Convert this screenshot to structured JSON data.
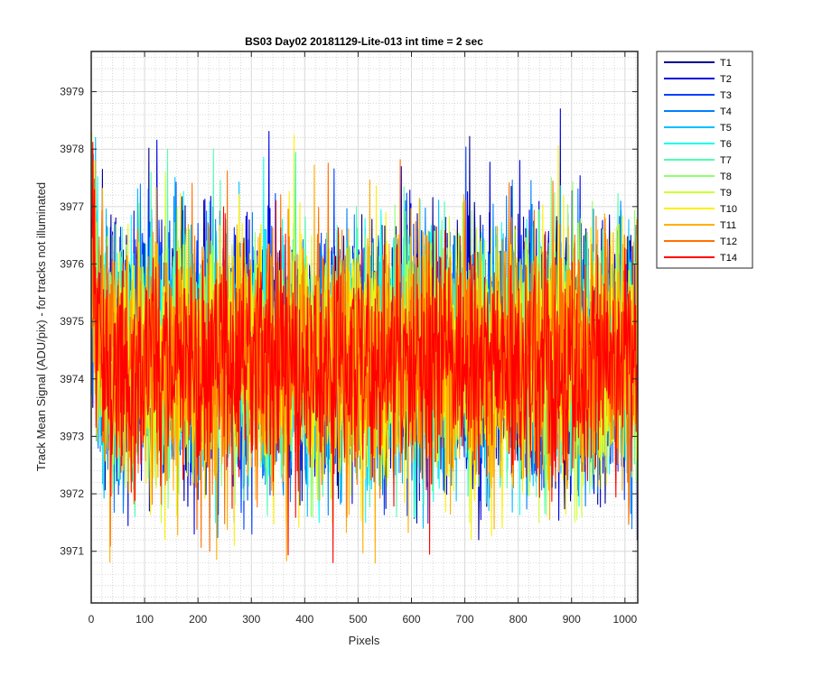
{
  "chart_data": {
    "type": "line",
    "title": "BS03 Day02 20181129-Lite-013 int time = 2 sec",
    "xlabel": "Pixels",
    "ylabel": "Track Mean Signal (ADU/pix) - for tracks not illuminated",
    "xlim": [
      0,
      1024
    ],
    "ylim": [
      3970.1,
      3979.7
    ],
    "xticks": [
      0,
      100,
      200,
      300,
      400,
      500,
      600,
      700,
      800,
      900,
      1000
    ],
    "yticks": [
      3971,
      3972,
      3973,
      3974,
      3975,
      3976,
      3977,
      3978,
      3979
    ],
    "grid": "major and minor",
    "legend_position": "outside-right-top",
    "x_points": 1024,
    "series": [
      {
        "name": "T1",
        "color": "#00008F",
        "mean": 3974.55,
        "spread": 1.15,
        "min": 3971.2,
        "max": 3979.6
      },
      {
        "name": "T2",
        "color": "#0000DF",
        "mean": 3974.5,
        "spread": 1.15,
        "min": 3971.3,
        "max": 3979.4
      },
      {
        "name": "T3",
        "color": "#0040FF",
        "mean": 3974.45,
        "spread": 1.1,
        "min": 3971.3,
        "max": 3979.1
      },
      {
        "name": "T4",
        "color": "#0080FF",
        "mean": 3974.45,
        "spread": 1.1,
        "min": 3971.0,
        "max": 3978.7
      },
      {
        "name": "T5",
        "color": "#00BFFF",
        "mean": 3974.4,
        "spread": 1.05,
        "min": 3971.4,
        "max": 3978.4
      },
      {
        "name": "T6",
        "color": "#10FFEF",
        "mean": 3974.4,
        "spread": 1.05,
        "min": 3971.5,
        "max": 3978.2
      },
      {
        "name": "T7",
        "color": "#50FFAF",
        "mean": 3974.35,
        "spread": 1.05,
        "min": 3971.6,
        "max": 3978.0
      },
      {
        "name": "T8",
        "color": "#8FFF70",
        "mean": 3974.35,
        "spread": 1.05,
        "min": 3971.5,
        "max": 3977.9
      },
      {
        "name": "T9",
        "color": "#CFFF30",
        "mean": 3974.3,
        "spread": 1.05,
        "min": 3971.5,
        "max": 3977.9
      },
      {
        "name": "T10",
        "color": "#FFEF00",
        "mean": 3974.3,
        "spread": 1.1,
        "min": 3971.1,
        "max": 3979.7
      },
      {
        "name": "T11",
        "color": "#FFAF00",
        "mean": 3974.3,
        "spread": 1.1,
        "min": 3970.1,
        "max": 3978.5
      },
      {
        "name": "T12",
        "color": "#FF7000",
        "mean": 3974.3,
        "spread": 1.05,
        "min": 3971.0,
        "max": 3978.0
      },
      {
        "name": "T14",
        "color": "#FF0000",
        "mean": 3974.25,
        "spread": 1.0,
        "min": 3970.8,
        "max": 3979.0
      }
    ]
  }
}
